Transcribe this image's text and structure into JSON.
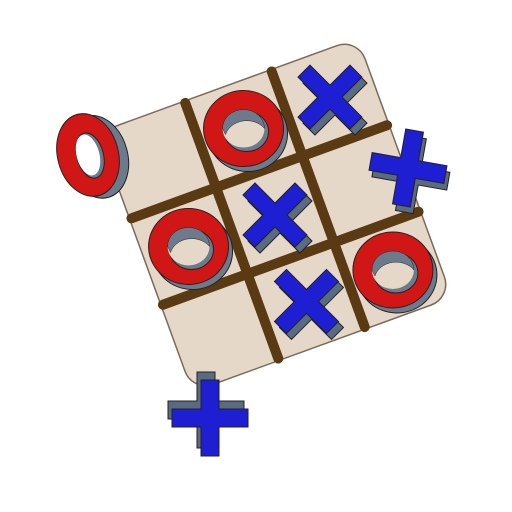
{
  "game": {
    "name": "tic-tac-toe",
    "board_cells": [
      [
        "",
        "O",
        "X"
      ],
      [
        "O",
        "X",
        ""
      ],
      [
        "",
        "X",
        "O"
      ]
    ],
    "spare_pieces": [
      "O",
      "X",
      "X"
    ]
  },
  "colors": {
    "board_fill": "#e6d8c8",
    "board_stroke": "#7a6a5a",
    "grid": "#5a3a12",
    "o_face": "#d11616",
    "o_side": "#6c7a8c",
    "x_face": "#1e1ed2",
    "x_side": "#5a6a80",
    "outline": "#222222",
    "background": "#ffffff"
  },
  "icons": {
    "o_piece": "ring-piece-icon",
    "x_piece": "cross-piece-icon"
  }
}
